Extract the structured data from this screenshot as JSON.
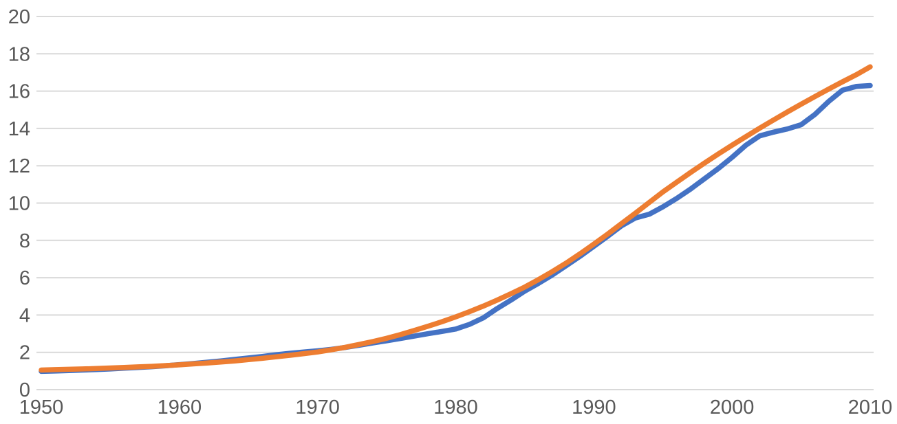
{
  "chart_data": {
    "type": "line",
    "title": "",
    "xlabel": "",
    "ylabel": "",
    "xlim": [
      1950,
      2010
    ],
    "ylim": [
      0,
      20
    ],
    "x_ticks": [
      1950,
      1960,
      1970,
      1980,
      1990,
      2000,
      2010
    ],
    "y_ticks": [
      0,
      2,
      4,
      6,
      8,
      10,
      12,
      14,
      16,
      18,
      20
    ],
    "gridlines": "horizontal-only",
    "legend_position": "none",
    "x": [
      1950,
      1951,
      1952,
      1953,
      1954,
      1955,
      1956,
      1957,
      1958,
      1959,
      1960,
      1961,
      1962,
      1963,
      1964,
      1965,
      1966,
      1967,
      1968,
      1969,
      1970,
      1971,
      1972,
      1973,
      1974,
      1975,
      1976,
      1977,
      1978,
      1979,
      1980,
      1981,
      1982,
      1983,
      1984,
      1985,
      1986,
      1987,
      1988,
      1989,
      1990,
      1991,
      1992,
      1993,
      1994,
      1995,
      1996,
      1997,
      1998,
      1999,
      2000,
      2001,
      2002,
      2003,
      2004,
      2005,
      2006,
      2007,
      2008,
      2009,
      2010
    ],
    "series": [
      {
        "name": "blue-series",
        "color": "#4472C4",
        "values": [
          0.98,
          1.0,
          1.02,
          1.05,
          1.08,
          1.11,
          1.15,
          1.19,
          1.23,
          1.28,
          1.34,
          1.4,
          1.47,
          1.54,
          1.62,
          1.7,
          1.78,
          1.87,
          1.95,
          2.02,
          2.08,
          2.16,
          2.26,
          2.38,
          2.5,
          2.62,
          2.74,
          2.87,
          3.0,
          3.12,
          3.25,
          3.5,
          3.85,
          4.35,
          4.8,
          5.28,
          5.7,
          6.15,
          6.65,
          7.15,
          7.68,
          8.22,
          8.78,
          9.2,
          9.4,
          9.8,
          10.25,
          10.75,
          11.3,
          11.85,
          12.45,
          13.1,
          13.6,
          13.8,
          13.97,
          14.2,
          14.75,
          15.45,
          16.05,
          16.25,
          16.3
        ]
      },
      {
        "name": "orange-series",
        "color": "#ED7D31",
        "values": [
          1.05,
          1.07,
          1.09,
          1.11,
          1.13,
          1.16,
          1.19,
          1.22,
          1.25,
          1.29,
          1.33,
          1.38,
          1.43,
          1.48,
          1.54,
          1.61,
          1.68,
          1.76,
          1.84,
          1.93,
          2.02,
          2.14,
          2.27,
          2.42,
          2.58,
          2.75,
          2.95,
          3.17,
          3.4,
          3.64,
          3.9,
          4.18,
          4.48,
          4.8,
          5.14,
          5.5,
          5.9,
          6.33,
          6.79,
          7.28,
          7.8,
          8.34,
          8.9,
          9.46,
          10.03,
          10.6,
          11.12,
          11.64,
          12.14,
          12.63,
          13.1,
          13.56,
          14.01,
          14.45,
          14.88,
          15.3,
          15.71,
          16.11,
          16.5,
          16.88,
          17.3
        ]
      }
    ]
  },
  "style": {
    "background": "#FFFFFF",
    "grid_color": "#D9D9D9",
    "tick_label_color": "#595959",
    "line_width": 7.5
  }
}
